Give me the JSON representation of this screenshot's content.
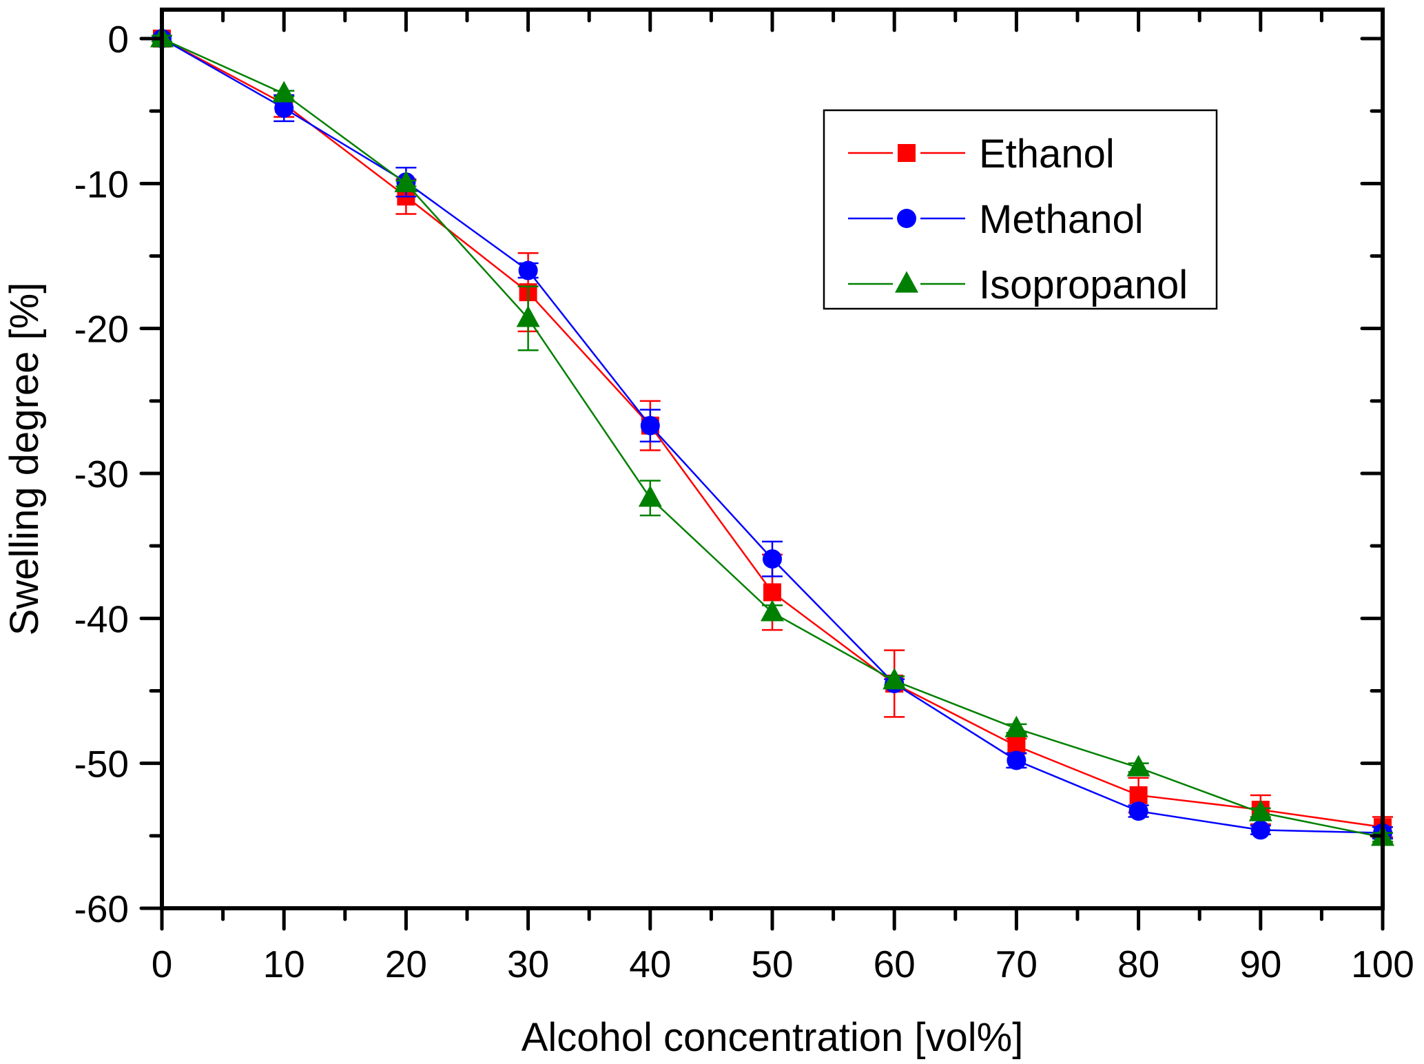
{
  "chart_data": {
    "type": "line",
    "title": "",
    "xlabel": "Alcohol concentration [vol%]",
    "ylabel": "Swelling degree [%]",
    "xlim": [
      0,
      100
    ],
    "ylim": [
      -60,
      2.5
    ],
    "x_ticks": [
      0,
      10,
      20,
      30,
      40,
      50,
      60,
      70,
      80,
      90,
      100
    ],
    "x_tick_labels": [
      "0",
      "10",
      "20",
      "30",
      "40",
      "50",
      "60",
      "70",
      "80",
      "90",
      "100"
    ],
    "x_minor_ticks": [
      5,
      15,
      25,
      35,
      45,
      55,
      65,
      75,
      85,
      95
    ],
    "y_ticks": [
      0,
      -10,
      -20,
      -30,
      -40,
      -50,
      -60
    ],
    "y_tick_labels": [
      "0",
      "-10",
      "-20",
      "-30",
      "-40",
      "-50",
      "-60"
    ],
    "y_minor_ticks": [
      -5,
      -15,
      -25,
      -35,
      -45,
      -55
    ],
    "grid": false,
    "legend_position": "top-right",
    "x": [
      0,
      10,
      20,
      30,
      40,
      50,
      60,
      70,
      80,
      90,
      100
    ],
    "series": [
      {
        "name": "Ethanol",
        "color": "#ff0000",
        "marker": "square",
        "values": [
          0,
          -4.5,
          -10.9,
          -17.5,
          -26.7,
          -38.2,
          -44.5,
          -48.8,
          -52.2,
          -53.2,
          -54.4
        ],
        "errors": [
          0.2,
          0.9,
          1.2,
          2.7,
          1.7,
          2.6,
          2.3,
          0.5,
          1.2,
          1.0,
          0.7
        ]
      },
      {
        "name": "Methanol",
        "color": "#0000ff",
        "marker": "circle",
        "values": [
          0,
          -4.8,
          -9.9,
          -16.0,
          -26.7,
          -35.9,
          -44.5,
          -49.8,
          -53.3,
          -54.6,
          -54.8
        ],
        "errors": [
          0.2,
          0.9,
          1.0,
          0.5,
          1.1,
          1.2,
          0.3,
          0.5,
          0.4,
          0.3,
          0.4
        ]
      },
      {
        "name": "Isopropanol",
        "color": "#008000",
        "marker": "triangle",
        "values": [
          0,
          -3.8,
          -10.0,
          -19.3,
          -31.7,
          -39.6,
          -44.3,
          -47.6,
          -50.3,
          -53.4,
          -55.1
        ],
        "errors": [
          0.2,
          0.2,
          0.2,
          2.2,
          1.2,
          0.5,
          0.3,
          0.3,
          0.3,
          0.3,
          0.3
        ]
      }
    ]
  }
}
